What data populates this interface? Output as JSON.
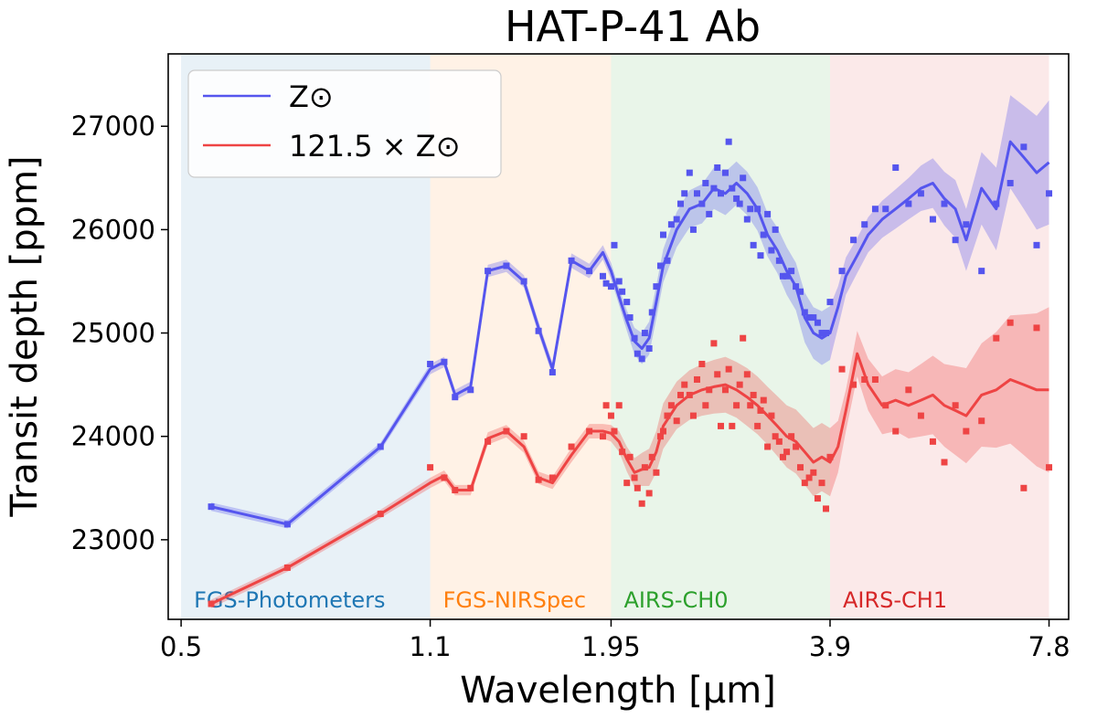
{
  "chart_data": {
    "type": "line",
    "title": "HAT-P-41 Ab",
    "xlabel": "Wavelength [μm]",
    "ylabel": "Transit depth [ppm]",
    "x_scale": "log",
    "xlim": [
      0.48,
      8.3
    ],
    "ylim": [
      22230,
      27700
    ],
    "x_ticks": [
      0.5,
      1.1,
      1.95,
      3.9,
      7.8
    ],
    "x_tick_labels": [
      "0.5",
      "1.1",
      "1.95",
      "3.9",
      "7.8"
    ],
    "y_ticks": [
      23000,
      24000,
      25000,
      26000,
      27000
    ],
    "y_tick_labels": [
      "23000",
      "24000",
      "25000",
      "26000",
      "27000"
    ],
    "grid": false,
    "legend_position": "top-left",
    "bands": [
      {
        "label": "FGS-Photometers",
        "x_range": [
          0.5,
          1.1
        ],
        "color": "#1f77b4"
      },
      {
        "label": "FGS-NIRSpec",
        "x_range": [
          1.1,
          1.95
        ],
        "color": "#ff7f0e"
      },
      {
        "label": "AIRS-CH0",
        "x_range": [
          1.95,
          3.9
        ],
        "color": "#2ca02c"
      },
      {
        "label": "AIRS-CH1",
        "x_range": [
          3.9,
          7.8
        ],
        "color": "#d62728"
      }
    ],
    "series": [
      {
        "name": "Z⊙",
        "color": "#5555ee",
        "model": {
          "x": [
            0.55,
            0.7,
            0.94,
            1.1,
            1.15,
            1.19,
            1.25,
            1.32,
            1.4,
            1.48,
            1.55,
            1.62,
            1.72,
            1.82,
            1.9,
            1.95,
            2.0,
            2.05,
            2.1,
            2.15,
            2.2,
            2.25,
            2.3,
            2.4,
            2.5,
            2.6,
            2.7,
            2.8,
            2.9,
            3.0,
            3.1,
            3.2,
            3.3,
            3.4,
            3.5,
            3.6,
            3.7,
            3.8,
            3.9,
            4.0,
            4.1,
            4.25,
            4.4,
            4.6,
            4.8,
            5.0,
            5.2,
            5.4,
            5.6,
            5.8,
            6.0,
            6.3,
            6.6,
            6.9,
            7.2,
            7.5,
            7.8
          ],
          "y": [
            23320,
            23150,
            23900,
            24650,
            24720,
            24400,
            24480,
            25600,
            25650,
            25500,
            25050,
            24650,
            25700,
            25600,
            25780,
            25600,
            25350,
            25120,
            24920,
            24850,
            24950,
            25300,
            25650,
            26000,
            26200,
            26250,
            26400,
            26350,
            26450,
            26350,
            26200,
            25950,
            25800,
            25600,
            25450,
            25150,
            25000,
            24950,
            25000,
            25250,
            25550,
            25750,
            25950,
            26100,
            26200,
            26300,
            26400,
            26450,
            26300,
            26200,
            25900,
            26400,
            26200,
            26850,
            26700,
            26550,
            26650
          ],
          "uncertainty": [
            40,
            40,
            40,
            50,
            50,
            50,
            50,
            60,
            60,
            60,
            60,
            60,
            70,
            70,
            70,
            80,
            80,
            100,
            130,
            150,
            160,
            160,
            160,
            170,
            180,
            190,
            200,
            210,
            210,
            210,
            210,
            210,
            220,
            230,
            230,
            240,
            250,
            260,
            260,
            200,
            180,
            170,
            170,
            180,
            190,
            200,
            220,
            240,
            260,
            280,
            300,
            350,
            400,
            450,
            500,
            550,
            600
          ]
        },
        "observed": {
          "x": [
            0.55,
            0.7,
            0.94,
            1.1,
            1.15,
            1.19,
            1.25,
            1.32,
            1.4,
            1.48,
            1.55,
            1.62,
            1.72,
            1.82,
            1.9,
            1.92,
            1.95,
            1.97,
            2.0,
            2.02,
            2.05,
            2.07,
            2.1,
            2.12,
            2.15,
            2.17,
            2.2,
            2.22,
            2.25,
            2.28,
            2.3,
            2.33,
            2.36,
            2.4,
            2.43,
            2.46,
            2.5,
            2.53,
            2.56,
            2.6,
            2.63,
            2.66,
            2.7,
            2.73,
            2.76,
            2.8,
            2.83,
            2.86,
            2.9,
            2.93,
            2.96,
            3.0,
            3.03,
            3.06,
            3.1,
            3.13,
            3.16,
            3.2,
            3.24,
            3.28,
            3.32,
            3.36,
            3.4,
            3.45,
            3.5,
            3.55,
            3.6,
            3.65,
            3.7,
            3.75,
            3.8,
            3.85,
            3.9,
            4.05,
            4.2,
            4.35,
            4.5,
            4.65,
            4.8,
            5.0,
            5.2,
            5.4,
            5.6,
            5.8,
            6.0,
            6.3,
            6.6,
            6.9,
            7.2,
            7.5,
            7.8
          ],
          "y": [
            23320,
            23150,
            23900,
            24700,
            24720,
            24380,
            24450,
            25600,
            25650,
            25500,
            25020,
            24620,
            25700,
            25600,
            25550,
            25480,
            25450,
            25850,
            25500,
            25400,
            25300,
            25150,
            24950,
            24800,
            24750,
            25000,
            24850,
            25200,
            25450,
            25650,
            25950,
            25700,
            26050,
            26100,
            26250,
            26350,
            26550,
            26000,
            26350,
            26250,
            26450,
            26150,
            26400,
            26600,
            26350,
            26550,
            26850,
            26400,
            26300,
            26250,
            26500,
            26100,
            26200,
            25850,
            26200,
            25750,
            25950,
            26150,
            25800,
            26000,
            25700,
            25550,
            25550,
            25600,
            25450,
            25400,
            25200,
            25150,
            25150,
            25100,
            25000,
            25000,
            25300,
            25600,
            25900,
            26050,
            26200,
            26200,
            26600,
            26250,
            26350,
            26100,
            26250,
            25900,
            26050,
            25600,
            26250,
            26450,
            26800,
            25850,
            26350
          ]
        }
      },
      {
        "name": "121.5 × Z⊙",
        "color": "#ee4444",
        "model": {
          "x": [
            0.55,
            0.7,
            0.94,
            1.1,
            1.15,
            1.19,
            1.25,
            1.32,
            1.4,
            1.48,
            1.55,
            1.62,
            1.72,
            1.82,
            1.9,
            1.95,
            2.0,
            2.05,
            2.1,
            2.15,
            2.2,
            2.25,
            2.3,
            2.4,
            2.5,
            2.6,
            2.7,
            2.8,
            2.9,
            3.0,
            3.1,
            3.2,
            3.3,
            3.4,
            3.5,
            3.6,
            3.7,
            3.8,
            3.9,
            4.0,
            4.1,
            4.25,
            4.4,
            4.6,
            4.8,
            5.0,
            5.2,
            5.4,
            5.6,
            5.8,
            6.0,
            6.3,
            6.6,
            6.9,
            7.2,
            7.5,
            7.8
          ],
          "y": [
            22380,
            22730,
            23250,
            23550,
            23620,
            23480,
            23480,
            23980,
            24050,
            23900,
            23600,
            23550,
            23820,
            24050,
            24050,
            24030,
            23950,
            23780,
            23650,
            23680,
            23700,
            23850,
            24100,
            24300,
            24400,
            24450,
            24480,
            24500,
            24450,
            24380,
            24300,
            24200,
            24100,
            24000,
            23950,
            23850,
            23750,
            23800,
            23750,
            23900,
            24250,
            24800,
            24500,
            24300,
            24350,
            24300,
            24350,
            24400,
            24300,
            24250,
            24200,
            24400,
            24450,
            24550,
            24500,
            24450,
            24450
          ],
          "uncertainty": [
            40,
            40,
            40,
            50,
            50,
            50,
            50,
            60,
            60,
            60,
            60,
            60,
            70,
            70,
            70,
            80,
            100,
            120,
            140,
            160,
            180,
            200,
            220,
            230,
            240,
            250,
            260,
            270,
            270,
            280,
            280,
            280,
            290,
            300,
            310,
            320,
            330,
            330,
            330,
            250,
            200,
            220,
            250,
            280,
            300,
            320,
            350,
            380,
            400,
            430,
            460,
            500,
            560,
            620,
            680,
            740,
            800
          ]
        },
        "observed": {
          "x": [
            0.55,
            0.7,
            0.94,
            1.1,
            1.15,
            1.19,
            1.25,
            1.32,
            1.4,
            1.48,
            1.55,
            1.62,
            1.72,
            1.82,
            1.9,
            1.92,
            1.95,
            1.97,
            2.0,
            2.02,
            2.05,
            2.07,
            2.1,
            2.12,
            2.15,
            2.17,
            2.2,
            2.22,
            2.25,
            2.28,
            2.3,
            2.33,
            2.36,
            2.4,
            2.43,
            2.46,
            2.5,
            2.53,
            2.56,
            2.6,
            2.63,
            2.66,
            2.7,
            2.73,
            2.76,
            2.8,
            2.83,
            2.86,
            2.9,
            2.93,
            2.96,
            3.0,
            3.03,
            3.06,
            3.1,
            3.13,
            3.16,
            3.2,
            3.24,
            3.28,
            3.32,
            3.36,
            3.4,
            3.45,
            3.5,
            3.55,
            3.6,
            3.65,
            3.7,
            3.75,
            3.8,
            3.85,
            3.9,
            4.05,
            4.2,
            4.35,
            4.5,
            4.65,
            4.8,
            5.0,
            5.2,
            5.4,
            5.6,
            5.8,
            6.0,
            6.3,
            6.6,
            6.9,
            7.2,
            7.5,
            7.8
          ],
          "y": [
            22380,
            22730,
            23250,
            23700,
            23600,
            23480,
            23500,
            23950,
            24050,
            24000,
            23580,
            23600,
            23900,
            24050,
            24000,
            24300,
            24200,
            24050,
            24300,
            23850,
            23550,
            23800,
            23600,
            23500,
            23350,
            23700,
            23450,
            23800,
            23650,
            24000,
            24050,
            24200,
            24300,
            24150,
            24400,
            24500,
            24400,
            24200,
            24550,
            24700,
            24300,
            24450,
            24900,
            24600,
            24100,
            24450,
            24650,
            24100,
            24300,
            24500,
            24950,
            24600,
            24300,
            24400,
            24100,
            24250,
            24350,
            23900,
            24200,
            24000,
            23950,
            23800,
            23850,
            24000,
            23900,
            23700,
            23550,
            23600,
            23650,
            23400,
            23550,
            23300,
            23800,
            24650,
            24500,
            24550,
            24550,
            24300,
            24050,
            24450,
            24200,
            23950,
            23750,
            24300,
            24050,
            24150,
            24950,
            25100,
            23500,
            25050,
            23700
          ]
        }
      }
    ]
  }
}
